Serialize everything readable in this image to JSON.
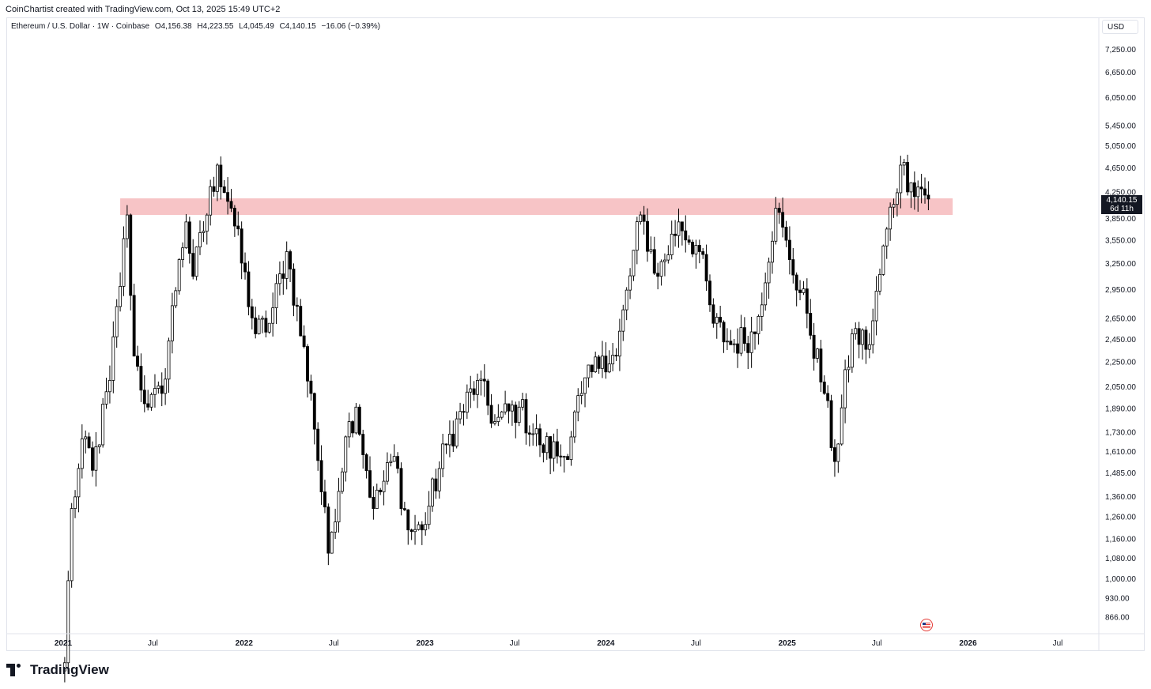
{
  "header": {
    "credit": "CoinChartist created with TradingView.com, Oct 13, 2025 15:49 UTC+2"
  },
  "legend": {
    "symbol": "Ethereum / U.S. Dollar · 1W · Coinbase",
    "open": "O4,156.38",
    "high": "H4,223.55",
    "low": "L4,045.49",
    "close": "C4,140.15",
    "change": "−16.06 (−0.39%)"
  },
  "currency": "USD",
  "last_price": {
    "price": "4,140.15",
    "countdown": "6d 11h"
  },
  "branding": {
    "logo_text": "TradingView"
  },
  "colors": {
    "up_fill": "#ffffff",
    "down_fill": "#000000",
    "wick": "#000000",
    "zone": "#f7c4c6",
    "label_bg": "#131722"
  },
  "chart_data": {
    "type": "candlestick",
    "title": "Ethereum / U.S. Dollar · 1W · Coinbase",
    "scale": "log",
    "ylim": [
      800,
      8000
    ],
    "y_ticks": [
      "7,250.00",
      "6,650.00",
      "6,050.00",
      "5,450.00",
      "5,050.00",
      "4,650.00",
      "4,250.00",
      "3,850.00",
      "3,550.00",
      "3,250.00",
      "2,950.00",
      "2,650.00",
      "2,450.00",
      "2,250.00",
      "2,050.00",
      "1,890.00",
      "1,730.00",
      "1,610.00",
      "1,485.00",
      "1,360.00",
      "1,260.00",
      "1,160.00",
      "1,080.00",
      "1,000.00",
      "930.00",
      "866.00"
    ],
    "x_ticks": [
      {
        "label": "2021",
        "bold": true
      },
      {
        "label": "Jul",
        "bold": false
      },
      {
        "label": "2022",
        "bold": true
      },
      {
        "label": "Jul",
        "bold": false
      },
      {
        "label": "2023",
        "bold": true
      },
      {
        "label": "Jul",
        "bold": false
      },
      {
        "label": "2024",
        "bold": true
      },
      {
        "label": "Jul",
        "bold": false
      },
      {
        "label": "2025",
        "bold": true
      },
      {
        "label": "Jul",
        "bold": false
      },
      {
        "label": "2026",
        "bold": true
      },
      {
        "label": "Jul",
        "bold": false
      }
    ],
    "zone": {
      "low": 3900,
      "high": 4150,
      "from": "2021-04-26",
      "to": "2025-12-01"
    },
    "anchors": [
      {
        "date": "2021-01-04",
        "price": 730
      },
      {
        "date": "2021-01-18",
        "price": 1300
      },
      {
        "date": "2021-02-15",
        "price": 1700
      },
      {
        "date": "2021-03-01",
        "price": 1500
      },
      {
        "date": "2021-04-05",
        "price": 2100
      },
      {
        "date": "2021-05-10",
        "price": 3900
      },
      {
        "date": "2021-05-24",
        "price": 2300
      },
      {
        "date": "2021-06-21",
        "price": 1900
      },
      {
        "date": "2021-07-19",
        "price": 2000
      },
      {
        "date": "2021-08-23",
        "price": 3300
      },
      {
        "date": "2021-09-06",
        "price": 3800
      },
      {
        "date": "2021-09-20",
        "price": 3100
      },
      {
        "date": "2021-11-08",
        "price": 4700
      },
      {
        "date": "2021-12-06",
        "price": 4000
      },
      {
        "date": "2022-01-24",
        "price": 2500
      },
      {
        "date": "2022-02-21",
        "price": 2600
      },
      {
        "date": "2022-03-28",
        "price": 3400
      },
      {
        "date": "2022-05-16",
        "price": 2000
      },
      {
        "date": "2022-06-20",
        "price": 1100
      },
      {
        "date": "2022-07-25",
        "price": 1700
      },
      {
        "date": "2022-08-15",
        "price": 1900
      },
      {
        "date": "2022-09-19",
        "price": 1300
      },
      {
        "date": "2022-10-31",
        "price": 1580
      },
      {
        "date": "2022-11-28",
        "price": 1200
      },
      {
        "date": "2022-12-26",
        "price": 1200
      },
      {
        "date": "2023-02-13",
        "price": 1650
      },
      {
        "date": "2023-04-17",
        "price": 2100
      },
      {
        "date": "2023-05-22",
        "price": 1800
      },
      {
        "date": "2023-07-10",
        "price": 1900
      },
      {
        "date": "2023-08-21",
        "price": 1650
      },
      {
        "date": "2023-10-09",
        "price": 1580
      },
      {
        "date": "2023-11-13",
        "price": 2000
      },
      {
        "date": "2023-12-25",
        "price": 2300
      },
      {
        "date": "2024-01-22",
        "price": 2300
      },
      {
        "date": "2024-03-11",
        "price": 3900
      },
      {
        "date": "2024-04-15",
        "price": 3100
      },
      {
        "date": "2024-05-27",
        "price": 3800
      },
      {
        "date": "2024-07-08",
        "price": 3400
      },
      {
        "date": "2024-08-05",
        "price": 2600
      },
      {
        "date": "2024-09-09",
        "price": 2400
      },
      {
        "date": "2024-10-28",
        "price": 2500
      },
      {
        "date": "2024-12-09",
        "price": 4000
      },
      {
        "date": "2025-01-06",
        "price": 3300
      },
      {
        "date": "2025-02-10",
        "price": 2700
      },
      {
        "date": "2025-03-17",
        "price": 2000
      },
      {
        "date": "2025-04-07",
        "price": 1550
      },
      {
        "date": "2025-05-12",
        "price": 2500
      },
      {
        "date": "2025-06-16",
        "price": 2400
      },
      {
        "date": "2025-07-21",
        "price": 3700
      },
      {
        "date": "2025-08-18",
        "price": 4700
      },
      {
        "date": "2025-09-08",
        "price": 4400
      },
      {
        "date": "2025-09-29",
        "price": 4300
      },
      {
        "date": "2025-10-13",
        "price": 4140
      }
    ]
  }
}
